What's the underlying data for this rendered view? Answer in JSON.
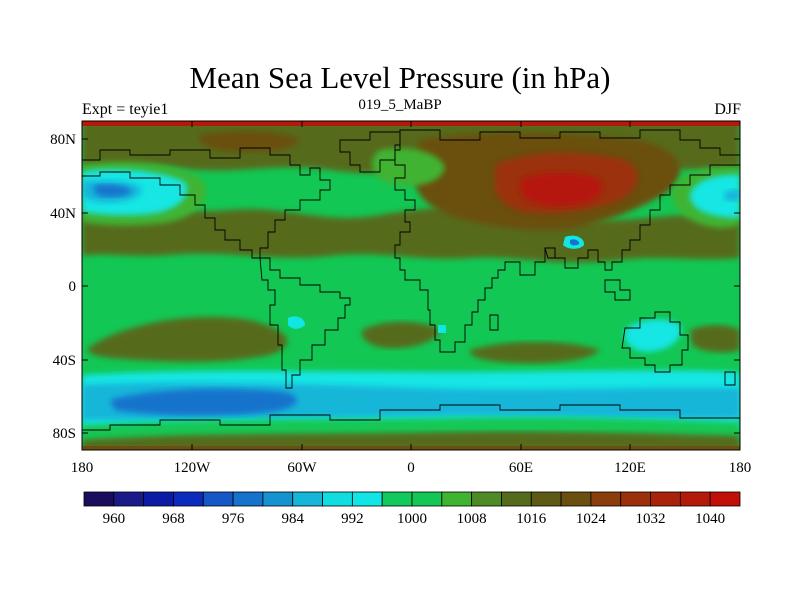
{
  "title": "Mean Sea Level Pressure (in hPa)",
  "experiment": "Expt = teyie1",
  "period": "019_5_MaBP",
  "season": "DJF",
  "lat_ticks": [
    "80N",
    "40N",
    "0",
    "40S",
    "80S"
  ],
  "lon_ticks": [
    "180",
    "120W",
    "60W",
    "0",
    "60E",
    "120E",
    "180"
  ],
  "colorbar": {
    "labels": [
      "960",
      "968",
      "976",
      "984",
      "992",
      "1000",
      "1008",
      "1016",
      "1024",
      "1032",
      "1040"
    ],
    "colors": [
      "#1a0d5e",
      "#1b1a8a",
      "#0d1aa6",
      "#0a2bbd",
      "#1557c7",
      "#1673cc",
      "#1592d0",
      "#16b6d9",
      "#10dde0",
      "#12e6e4",
      "#11c95c",
      "#12c754",
      "#3fb431",
      "#4e8b26",
      "#566a1c",
      "#5c5a15",
      "#6b4f10",
      "#8a3e0c",
      "#9b300a",
      "#a8230a",
      "#b51909",
      "#c21008"
    ]
  },
  "map_colors": {
    "green": "#12c754",
    "green2": "#3fb431",
    "olive": "#566a1c",
    "brown": "#6b4f10",
    "darkred": "#9b300a",
    "red": "#b51909",
    "cyan": "#12e6e4",
    "sky": "#16b6d9",
    "blue": "#1673cc"
  }
}
